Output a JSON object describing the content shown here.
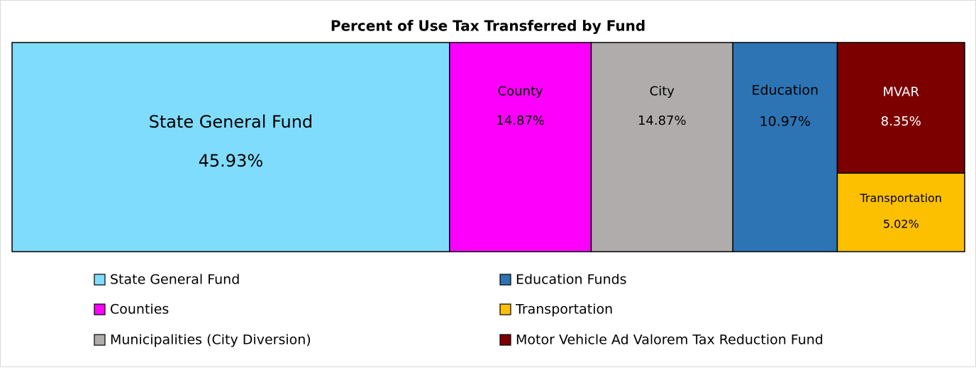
{
  "chart_data": {
    "type": "treemap",
    "title": "Percent of Use Tax Transferred by Fund",
    "series": [
      {
        "name": "State General Fund",
        "label": "State General Fund",
        "color": "#80dcfc",
        "values": [
          45.93
        ],
        "value_labels": [
          "45.93%"
        ]
      },
      {
        "name": "Counties",
        "label": "County",
        "color": "#fc00fc",
        "values": [
          14.87
        ],
        "value_labels": [
          "14.87%"
        ]
      },
      {
        "name": "Municipalities (City Diversion)",
        "label": "City",
        "color": "#b0acac",
        "values": [
          14.87
        ],
        "value_labels": [
          "14.87%"
        ]
      },
      {
        "name": "Education Funds",
        "label": "Education",
        "color": "#2c74b4",
        "values": [
          10.97
        ],
        "value_labels": [
          "10.97%"
        ]
      },
      {
        "name": "Motor Vehicle Ad Valorem Tax Reduction Fund",
        "label": "MVAR",
        "color": "#7c0000",
        "values": [
          8.35
        ],
        "value_labels": [
          "8.35%"
        ]
      },
      {
        "name": "Transportation",
        "label": "Transportation",
        "color": "#fcc000",
        "values": [
          5.02
        ],
        "value_labels": [
          "5.02%"
        ]
      }
    ]
  }
}
